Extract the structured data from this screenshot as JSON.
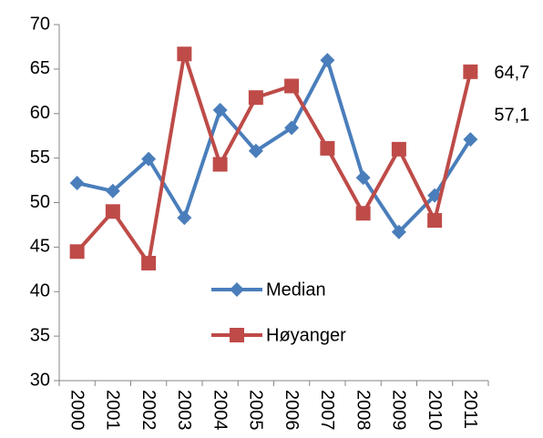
{
  "chart_data": {
    "type": "line",
    "categories": [
      "2000",
      "2001",
      "2002",
      "2003",
      "2004",
      "2005",
      "2006",
      "2007",
      "2008",
      "2009",
      "2010",
      "2011"
    ],
    "series": [
      {
        "name": "Median",
        "color": "#4a7ebb",
        "marker": "diamond",
        "values": [
          52.2,
          51.3,
          54.9,
          48.3,
          60.4,
          55.8,
          58.4,
          66.0,
          52.8,
          46.7,
          50.8,
          57.1
        ],
        "value_labels": [
          null,
          null,
          null,
          null,
          null,
          null,
          null,
          null,
          null,
          null,
          null,
          "57,1"
        ]
      },
      {
        "name": "Høyanger",
        "color": "#be4b48",
        "marker": "square",
        "values": [
          44.5,
          49.0,
          43.2,
          66.7,
          54.3,
          61.8,
          63.1,
          56.1,
          48.8,
          56.0,
          48.0,
          64.7
        ],
        "value_labels": [
          null,
          null,
          null,
          null,
          null,
          null,
          null,
          null,
          null,
          null,
          null,
          "64,7"
        ]
      }
    ],
    "ylim": [
      30,
      70
    ],
    "yticks": [
      30,
      35,
      40,
      45,
      50,
      55,
      60,
      65,
      70
    ],
    "grid": false
  }
}
